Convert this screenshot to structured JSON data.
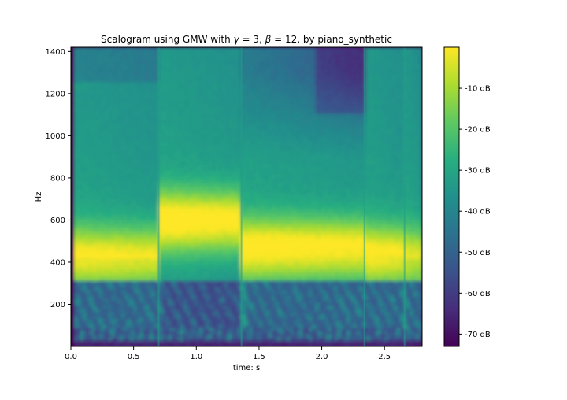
{
  "chart_data": {
    "type": "heatmap",
    "title": "Scalogram using GMW with γ = 3, β = 12, by piano_synthetic",
    "title_parts": {
      "prefix": "Scalogram using GMW with ",
      "gamma_symbol": "γ",
      "gamma_text": " = 3, ",
      "beta_symbol": "β",
      "beta_text": " = 12, by piano_synthetic"
    },
    "xlabel": "time: s",
    "ylabel": "Hz",
    "xlim": [
      0,
      2.8
    ],
    "ylim": [
      0,
      1420
    ],
    "x_ticks": [
      {
        "value": 0.0,
        "label": "0.0"
      },
      {
        "value": 0.5,
        "label": "0.5"
      },
      {
        "value": 1.0,
        "label": "1.0"
      },
      {
        "value": 1.5,
        "label": "1.5"
      },
      {
        "value": 2.0,
        "label": "2.0"
      },
      {
        "value": 2.5,
        "label": "2.5"
      }
    ],
    "y_ticks": [
      {
        "value": 200,
        "label": "200"
      },
      {
        "value": 400,
        "label": "400"
      },
      {
        "value": 600,
        "label": "600"
      },
      {
        "value": 800,
        "label": "800"
      },
      {
        "value": 1000,
        "label": "1000"
      },
      {
        "value": 1200,
        "label": "1200"
      },
      {
        "value": 1400,
        "label": "1400"
      }
    ],
    "colorbar": {
      "range_db": [
        -73,
        0
      ],
      "ticks": [
        {
          "value": -10,
          "label": "-10 dB"
        },
        {
          "value": -20,
          "label": "-20 dB"
        },
        {
          "value": -30,
          "label": "-30 dB"
        },
        {
          "value": -40,
          "label": "-40 dB"
        },
        {
          "value": -50,
          "label": "-50 dB"
        },
        {
          "value": -60,
          "label": "-60 dB"
        },
        {
          "value": -70,
          "label": "-70 dB"
        }
      ],
      "colormap": "viridis"
    },
    "notes_segments": [
      {
        "start": 0.0,
        "end": 0.7,
        "peak_hz": 420,
        "peak_db": -8
      },
      {
        "start": 0.7,
        "end": 1.36,
        "peak_hz": 590,
        "peak_db": -3
      },
      {
        "start": 1.36,
        "end": 2.34,
        "peak_hz": 460,
        "peak_db": -4
      },
      {
        "start": 2.34,
        "end": 2.66,
        "peak_hz": 430,
        "peak_db": -6
      },
      {
        "start": 2.66,
        "end": 2.8,
        "peak_hz": 420,
        "peak_db": -12
      }
    ]
  }
}
